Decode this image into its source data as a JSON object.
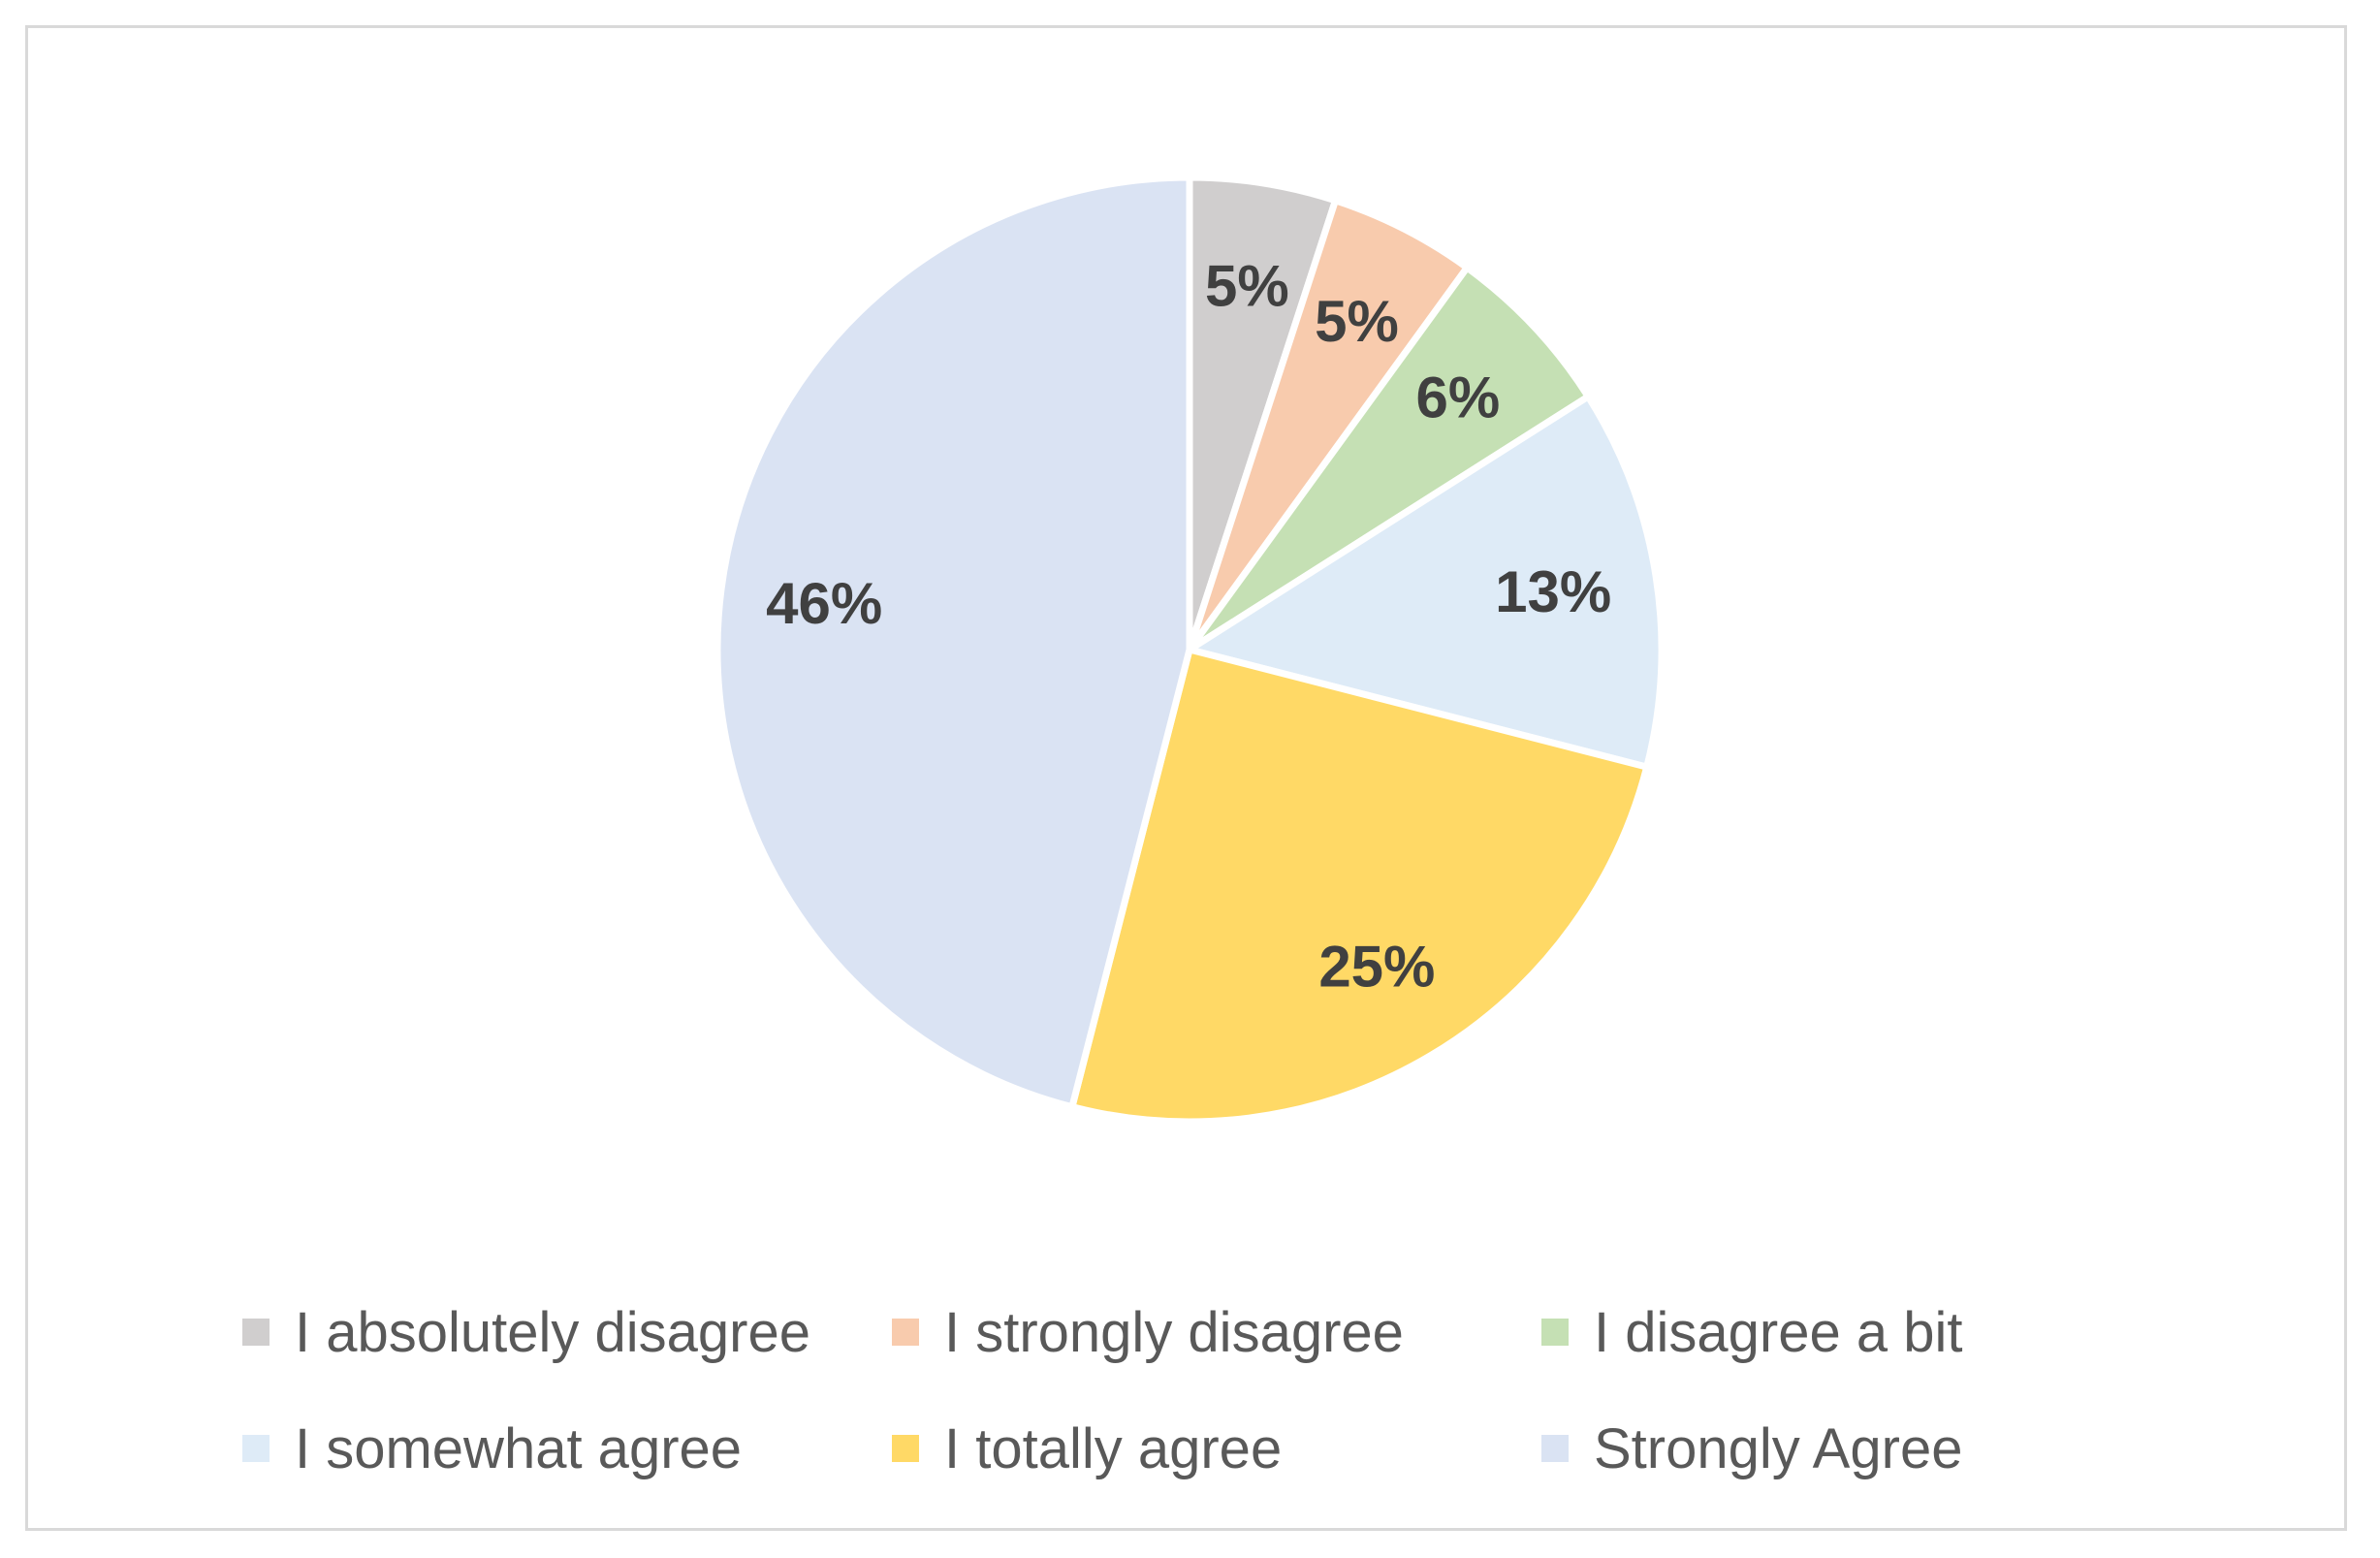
{
  "chart_data": {
    "type": "pie",
    "title": "",
    "categories": [
      "I absolutely disagree",
      "I strongly disagree",
      "I disagree a bit",
      "I somewhat agree",
      "I totally agree",
      "Strongly Agree"
    ],
    "values": [
      5,
      5,
      6,
      13,
      25,
      46
    ],
    "labels": [
      "5%",
      "5%",
      "6%",
      "13%",
      "25%",
      "46%"
    ],
    "colors": [
      "#d0cece",
      "#f8cbad",
      "#c5e0b4",
      "#deebf7",
      "#ffd966",
      "#dae3f3"
    ],
    "legend": {
      "placement": "bottom",
      "entries": [
        "I absolutely disagree",
        "I strongly disagree",
        "I disagree a bit",
        "I somewhat agree",
        "I totally agree",
        "Strongly Agree"
      ]
    }
  }
}
